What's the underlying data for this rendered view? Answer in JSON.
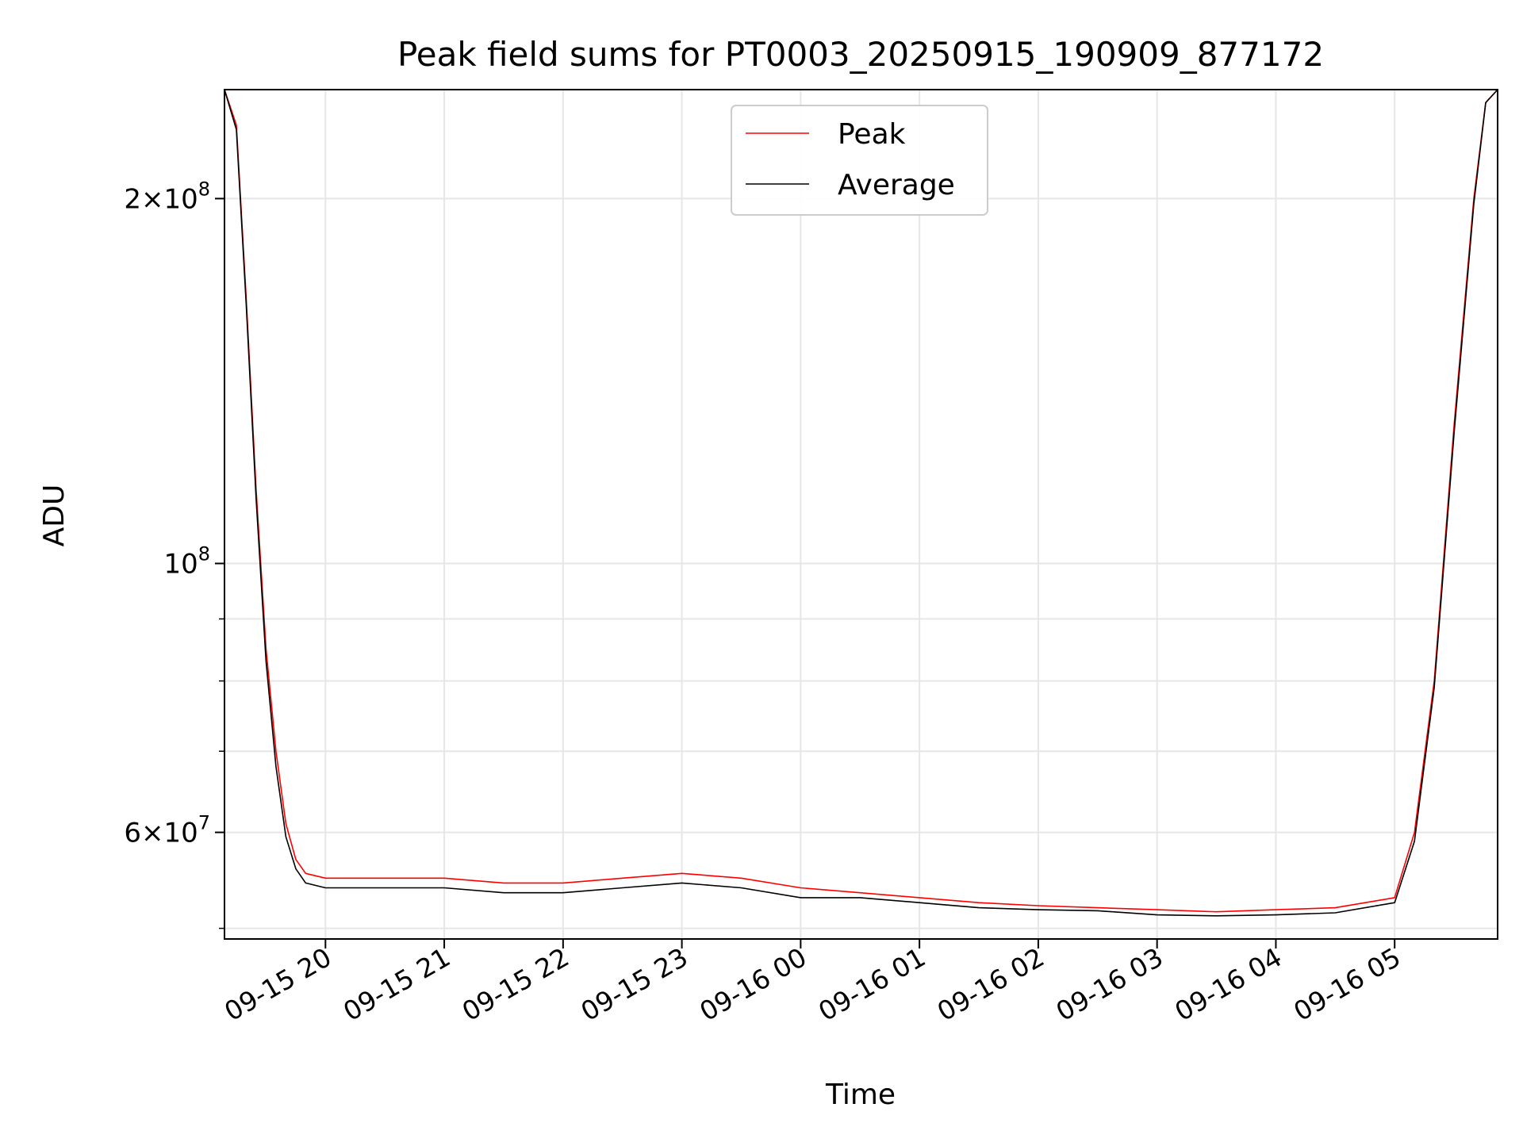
{
  "chart_data": {
    "type": "line",
    "title": "Peak field sums for PT0003_20250915_190909_877172",
    "xlabel": "Time",
    "ylabel": "ADU",
    "x_ticks": [
      "09-15 20",
      "09-15 21",
      "09-15 22",
      "09-15 23",
      "09-16 00",
      "09-16 01",
      "09-16 02",
      "09-16 03",
      "09-16 04",
      "09-16 05"
    ],
    "y_scale": "log",
    "y_ticks": [
      {
        "value": 200000000,
        "mantissa": "2",
        "exponent": "8"
      },
      {
        "value": 100000000,
        "mantissa": "",
        "exponent": "8"
      },
      {
        "value": 60000000,
        "mantissa": "6",
        "exponent": "7"
      }
    ],
    "y_minor_ticks": [
      50000000,
      70000000,
      80000000,
      90000000
    ],
    "xlim": [
      "2025-09-15 19:09",
      "2025-09-16 05:52"
    ],
    "ylim": [
      49000000,
      246000000
    ],
    "grid": true,
    "legend_position": "top-center",
    "series": [
      {
        "name": "Peak",
        "color": "#ff0000",
        "x": [
          "2025-09-15 19:09",
          "2025-09-15 19:15",
          "2025-09-15 19:20",
          "2025-09-15 19:25",
          "2025-09-15 19:30",
          "2025-09-15 19:35",
          "2025-09-15 19:40",
          "2025-09-15 19:45",
          "2025-09-15 19:50",
          "2025-09-15 20:00",
          "2025-09-15 20:30",
          "2025-09-15 21:00",
          "2025-09-15 21:30",
          "2025-09-15 22:00",
          "2025-09-15 22:30",
          "2025-09-15 23:00",
          "2025-09-15 23:30",
          "2025-09-16 00:00",
          "2025-09-16 00:30",
          "2025-09-16 01:00",
          "2025-09-16 01:30",
          "2025-09-16 02:00",
          "2025-09-16 02:30",
          "2025-09-16 03:00",
          "2025-09-16 03:30",
          "2025-09-16 04:00",
          "2025-09-16 04:30",
          "2025-09-16 05:00",
          "2025-09-16 05:10",
          "2025-09-16 05:20",
          "2025-09-16 05:30",
          "2025-09-16 05:40",
          "2025-09-16 05:46",
          "2025-09-16 05:52"
        ],
        "y": [
          246000000,
          230000000,
          165000000,
          115000000,
          85000000,
          70000000,
          61000000,
          57000000,
          55500000,
          55000000,
          55000000,
          55000000,
          54500000,
          54500000,
          55000000,
          55500000,
          55000000,
          54000000,
          53500000,
          53000000,
          52500000,
          52200000,
          52000000,
          51800000,
          51600000,
          51800000,
          52000000,
          53000000,
          60000000,
          80000000,
          130000000,
          200000000,
          240000000,
          246000000
        ]
      },
      {
        "name": "Average",
        "color": "#000000",
        "x": [
          "2025-09-15 19:09",
          "2025-09-15 19:15",
          "2025-09-15 19:20",
          "2025-09-15 19:25",
          "2025-09-15 19:30",
          "2025-09-15 19:35",
          "2025-09-15 19:40",
          "2025-09-15 19:45",
          "2025-09-15 19:50",
          "2025-09-15 20:00",
          "2025-09-15 20:30",
          "2025-09-15 21:00",
          "2025-09-15 21:30",
          "2025-09-15 22:00",
          "2025-09-15 22:30",
          "2025-09-15 23:00",
          "2025-09-15 23:30",
          "2025-09-16 00:00",
          "2025-09-16 00:30",
          "2025-09-16 01:00",
          "2025-09-16 01:30",
          "2025-09-16 02:00",
          "2025-09-16 02:30",
          "2025-09-16 03:00",
          "2025-09-16 03:30",
          "2025-09-16 04:00",
          "2025-09-16 04:30",
          "2025-09-16 05:00",
          "2025-09-16 05:10",
          "2025-09-16 05:20",
          "2025-09-16 05:30",
          "2025-09-16 05:40",
          "2025-09-16 05:46",
          "2025-09-16 05:52"
        ],
        "y": [
          246000000,
          228000000,
          163000000,
          113000000,
          83000000,
          68000000,
          59500000,
          56000000,
          54500000,
          54000000,
          54000000,
          54000000,
          53500000,
          53500000,
          54000000,
          54500000,
          54000000,
          53000000,
          53000000,
          52500000,
          52000000,
          51800000,
          51700000,
          51300000,
          51200000,
          51300000,
          51500000,
          52500000,
          59000000,
          79000000,
          128000000,
          198000000,
          240000000,
          246000000
        ]
      }
    ]
  }
}
